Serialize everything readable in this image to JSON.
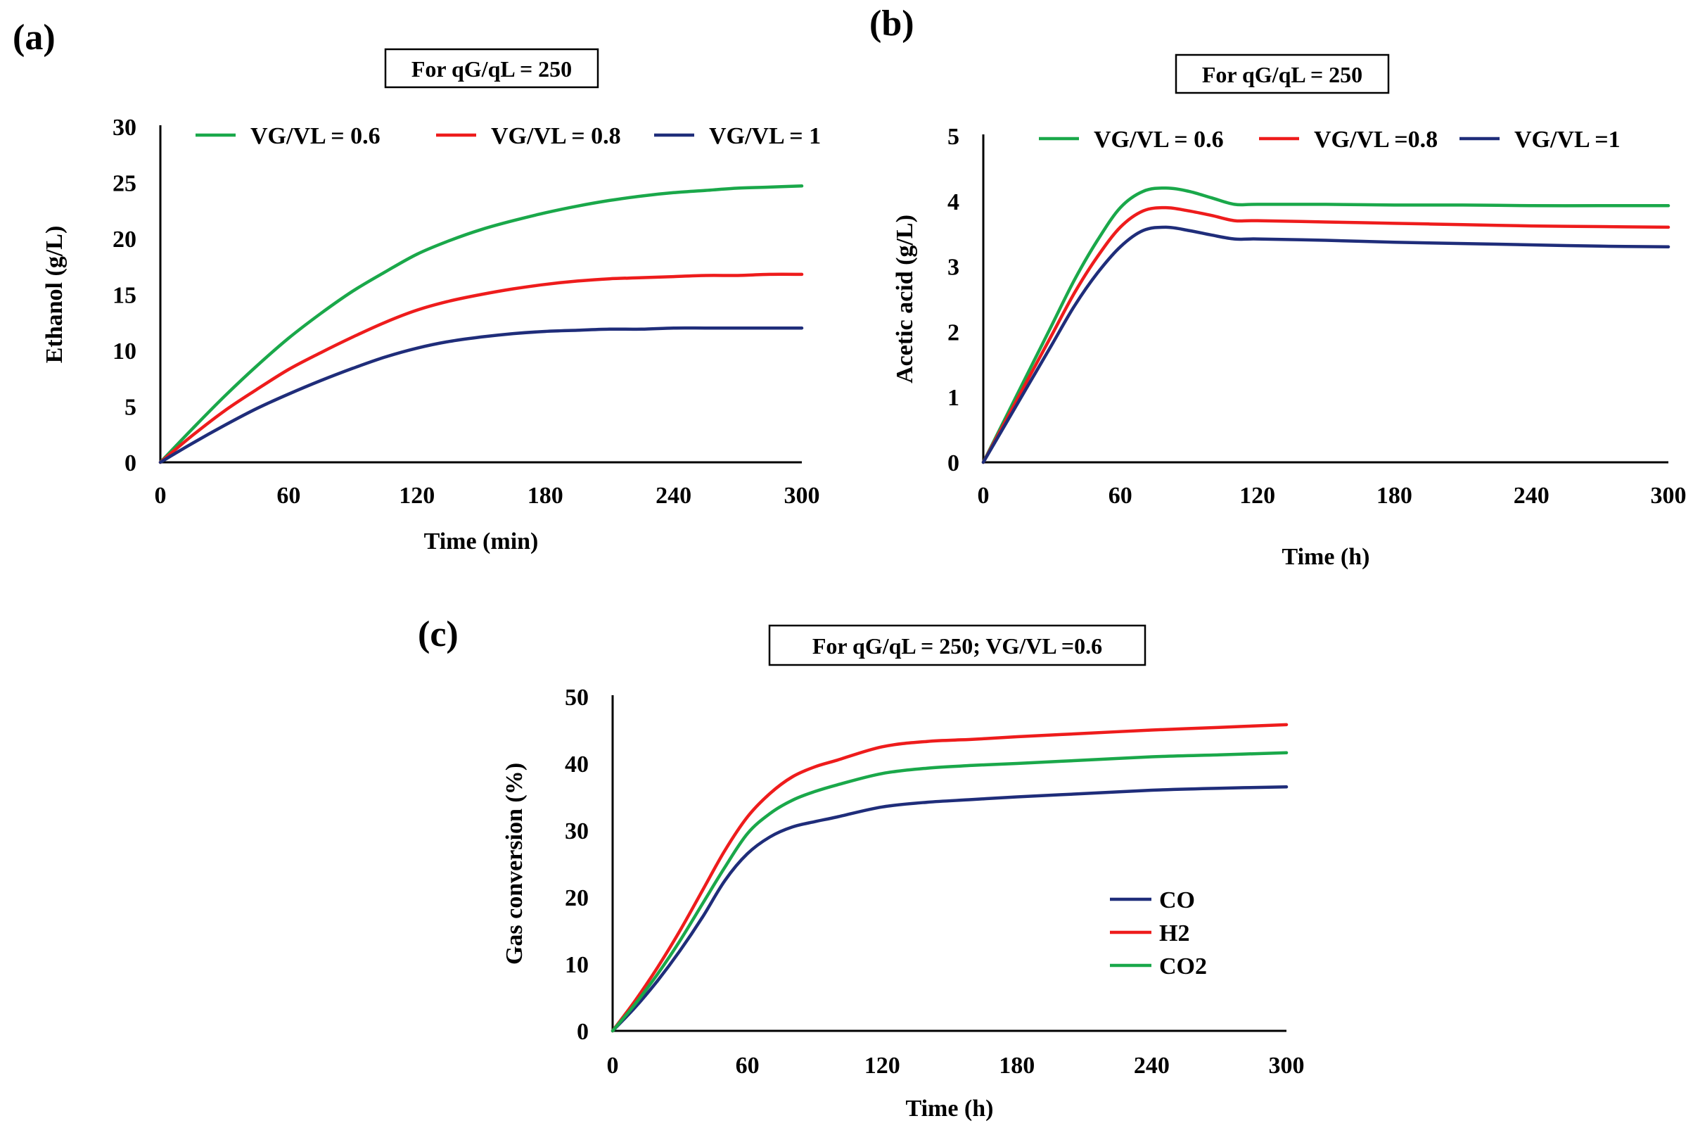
{
  "chart_data": [
    {
      "type": "line",
      "panel_label": "(a)",
      "title": "For qG/qL = 250",
      "xlabel": "Time (min)",
      "ylabel": "Ethanol (g/L)",
      "xlim": [
        0,
        300
      ],
      "ylim": [
        0,
        30
      ],
      "xticks": [
        0,
        60,
        120,
        180,
        240,
        300
      ],
      "yticks": [
        0,
        5,
        10,
        15,
        20,
        25,
        30
      ],
      "legend_position": "top",
      "series": [
        {
          "name": "VG/VL = 0.6",
          "color": "#1aa84a",
          "x": [
            0,
            15,
            30,
            45,
            60,
            75,
            90,
            105,
            120,
            135,
            150,
            165,
            180,
            195,
            210,
            225,
            240,
            255,
            270,
            285,
            300
          ],
          "y": [
            0,
            3.0,
            5.9,
            8.6,
            11.1,
            13.3,
            15.3,
            17.0,
            18.6,
            19.8,
            20.8,
            21.6,
            22.3,
            22.9,
            23.4,
            23.8,
            24.1,
            24.3,
            24.5,
            24.6,
            24.7
          ]
        },
        {
          "name": "VG/VL = 0.8",
          "color": "#ee1c1c",
          "x": [
            0,
            15,
            30,
            45,
            60,
            75,
            90,
            105,
            120,
            135,
            150,
            165,
            180,
            195,
            210,
            225,
            240,
            255,
            270,
            285,
            300
          ],
          "y": [
            0,
            2.4,
            4.6,
            6.5,
            8.3,
            9.8,
            11.2,
            12.5,
            13.6,
            14.4,
            15.0,
            15.5,
            15.9,
            16.2,
            16.4,
            16.5,
            16.6,
            16.7,
            16.7,
            16.8,
            16.8
          ]
        },
        {
          "name": "VG/VL = 1",
          "color": "#1f2d7a",
          "x": [
            0,
            15,
            30,
            45,
            60,
            75,
            90,
            105,
            120,
            135,
            150,
            165,
            180,
            195,
            210,
            225,
            240,
            255,
            270,
            285,
            300
          ],
          "y": [
            0,
            1.7,
            3.3,
            4.8,
            6.1,
            7.3,
            8.4,
            9.4,
            10.2,
            10.8,
            11.2,
            11.5,
            11.7,
            11.8,
            11.9,
            11.9,
            12.0,
            12.0,
            12.0,
            12.0,
            12.0
          ]
        }
      ]
    },
    {
      "type": "line",
      "panel_label": "(b)",
      "title": "For qG/qL = 250",
      "xlabel": "Time (h)",
      "ylabel": "Acetic acid (g/L)",
      "xlim": [
        0,
        300
      ],
      "ylim": [
        0,
        5
      ],
      "xticks": [
        0,
        60,
        120,
        180,
        240,
        300
      ],
      "yticks": [
        0,
        1,
        2,
        3,
        4,
        5
      ],
      "legend_position": "top",
      "series": [
        {
          "name": "VG/VL = 0.6",
          "color": "#1aa84a",
          "x": [
            0,
            10,
            20,
            30,
            40,
            50,
            60,
            70,
            80,
            90,
            100,
            110,
            120,
            150,
            180,
            210,
            240,
            270,
            300
          ],
          "y": [
            0,
            0.7,
            1.4,
            2.1,
            2.8,
            3.4,
            3.9,
            4.15,
            4.2,
            4.15,
            4.05,
            3.95,
            3.95,
            3.95,
            3.94,
            3.94,
            3.93,
            3.93,
            3.93
          ]
        },
        {
          "name": "VG/VL =0.8",
          "color": "#ee1c1c",
          "x": [
            0,
            10,
            20,
            30,
            40,
            50,
            60,
            70,
            80,
            90,
            100,
            110,
            120,
            150,
            180,
            210,
            240,
            270,
            300
          ],
          "y": [
            0,
            0.65,
            1.3,
            1.95,
            2.6,
            3.15,
            3.6,
            3.85,
            3.9,
            3.85,
            3.78,
            3.7,
            3.7,
            3.68,
            3.66,
            3.64,
            3.62,
            3.61,
            3.6
          ]
        },
        {
          "name": "VG/VL =1",
          "color": "#1f2d7a",
          "x": [
            0,
            10,
            20,
            30,
            40,
            50,
            60,
            70,
            80,
            90,
            100,
            110,
            120,
            150,
            180,
            210,
            240,
            270,
            300
          ],
          "y": [
            0,
            0.6,
            1.2,
            1.8,
            2.4,
            2.9,
            3.3,
            3.55,
            3.6,
            3.55,
            3.48,
            3.42,
            3.42,
            3.4,
            3.37,
            3.35,
            3.33,
            3.31,
            3.3
          ]
        }
      ]
    },
    {
      "type": "line",
      "panel_label": "(c)",
      "title": "For qG/qL = 250; VG/VL =0.6",
      "xlabel": "Time (h)",
      "ylabel": "Gas conversion (%)",
      "xlim": [
        0,
        300
      ],
      "ylim": [
        0,
        50
      ],
      "xticks": [
        0,
        60,
        120,
        180,
        240,
        300
      ],
      "yticks": [
        0,
        10,
        20,
        30,
        40,
        50
      ],
      "legend_position": "lower-right",
      "series": [
        {
          "name": "CO",
          "color": "#1f2d7a",
          "x": [
            0,
            10,
            20,
            30,
            40,
            50,
            60,
            70,
            80,
            90,
            100,
            120,
            140,
            160,
            180,
            210,
            240,
            270,
            300
          ],
          "y": [
            0,
            3.5,
            7.5,
            12.0,
            17.0,
            22.5,
            26.5,
            29.0,
            30.5,
            31.3,
            32.0,
            33.5,
            34.2,
            34.6,
            35.0,
            35.5,
            36.0,
            36.3,
            36.5
          ]
        },
        {
          "name": "H2",
          "color": "#ee1c1c",
          "x": [
            0,
            10,
            20,
            30,
            40,
            50,
            60,
            70,
            80,
            90,
            100,
            120,
            140,
            160,
            180,
            210,
            240,
            270,
            300
          ],
          "y": [
            0,
            4.5,
            9.5,
            15.0,
            21.0,
            27.0,
            32.0,
            35.5,
            38.0,
            39.5,
            40.5,
            42.5,
            43.3,
            43.6,
            44.0,
            44.5,
            45.0,
            45.4,
            45.8
          ]
        },
        {
          "name": "CO2",
          "color": "#1aa84a",
          "x": [
            0,
            10,
            20,
            30,
            40,
            50,
            60,
            70,
            80,
            90,
            100,
            120,
            140,
            160,
            180,
            210,
            240,
            270,
            300
          ],
          "y": [
            0,
            4.0,
            8.5,
            13.5,
            19.0,
            24.5,
            29.5,
            32.5,
            34.5,
            35.8,
            36.8,
            38.5,
            39.3,
            39.7,
            40.0,
            40.5,
            41.0,
            41.3,
            41.6
          ]
        }
      ]
    }
  ]
}
